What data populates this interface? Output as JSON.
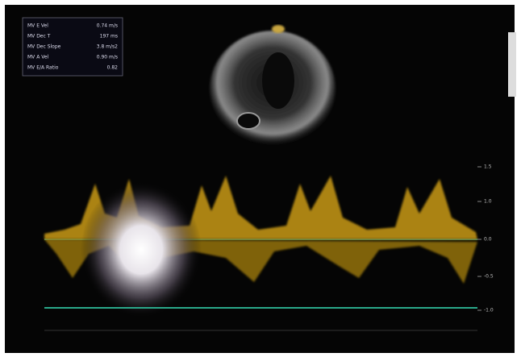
{
  "measurements": [
    {
      "label": "MV E Vel",
      "value": "0.74 m/s"
    },
    {
      "label": "MV Dec T",
      "value": "197 ms"
    },
    {
      "label": "MV Dec Slope",
      "value": "3.8 m/s2"
    },
    {
      "label": "MV A Vel",
      "value": "0.90 m/s"
    },
    {
      "label": "MV E/A Ratio",
      "value": "0.82"
    }
  ],
  "scale_labels": [
    "1.5",
    "1.0",
    "0.0",
    "-0.5",
    "-1.0"
  ]
}
